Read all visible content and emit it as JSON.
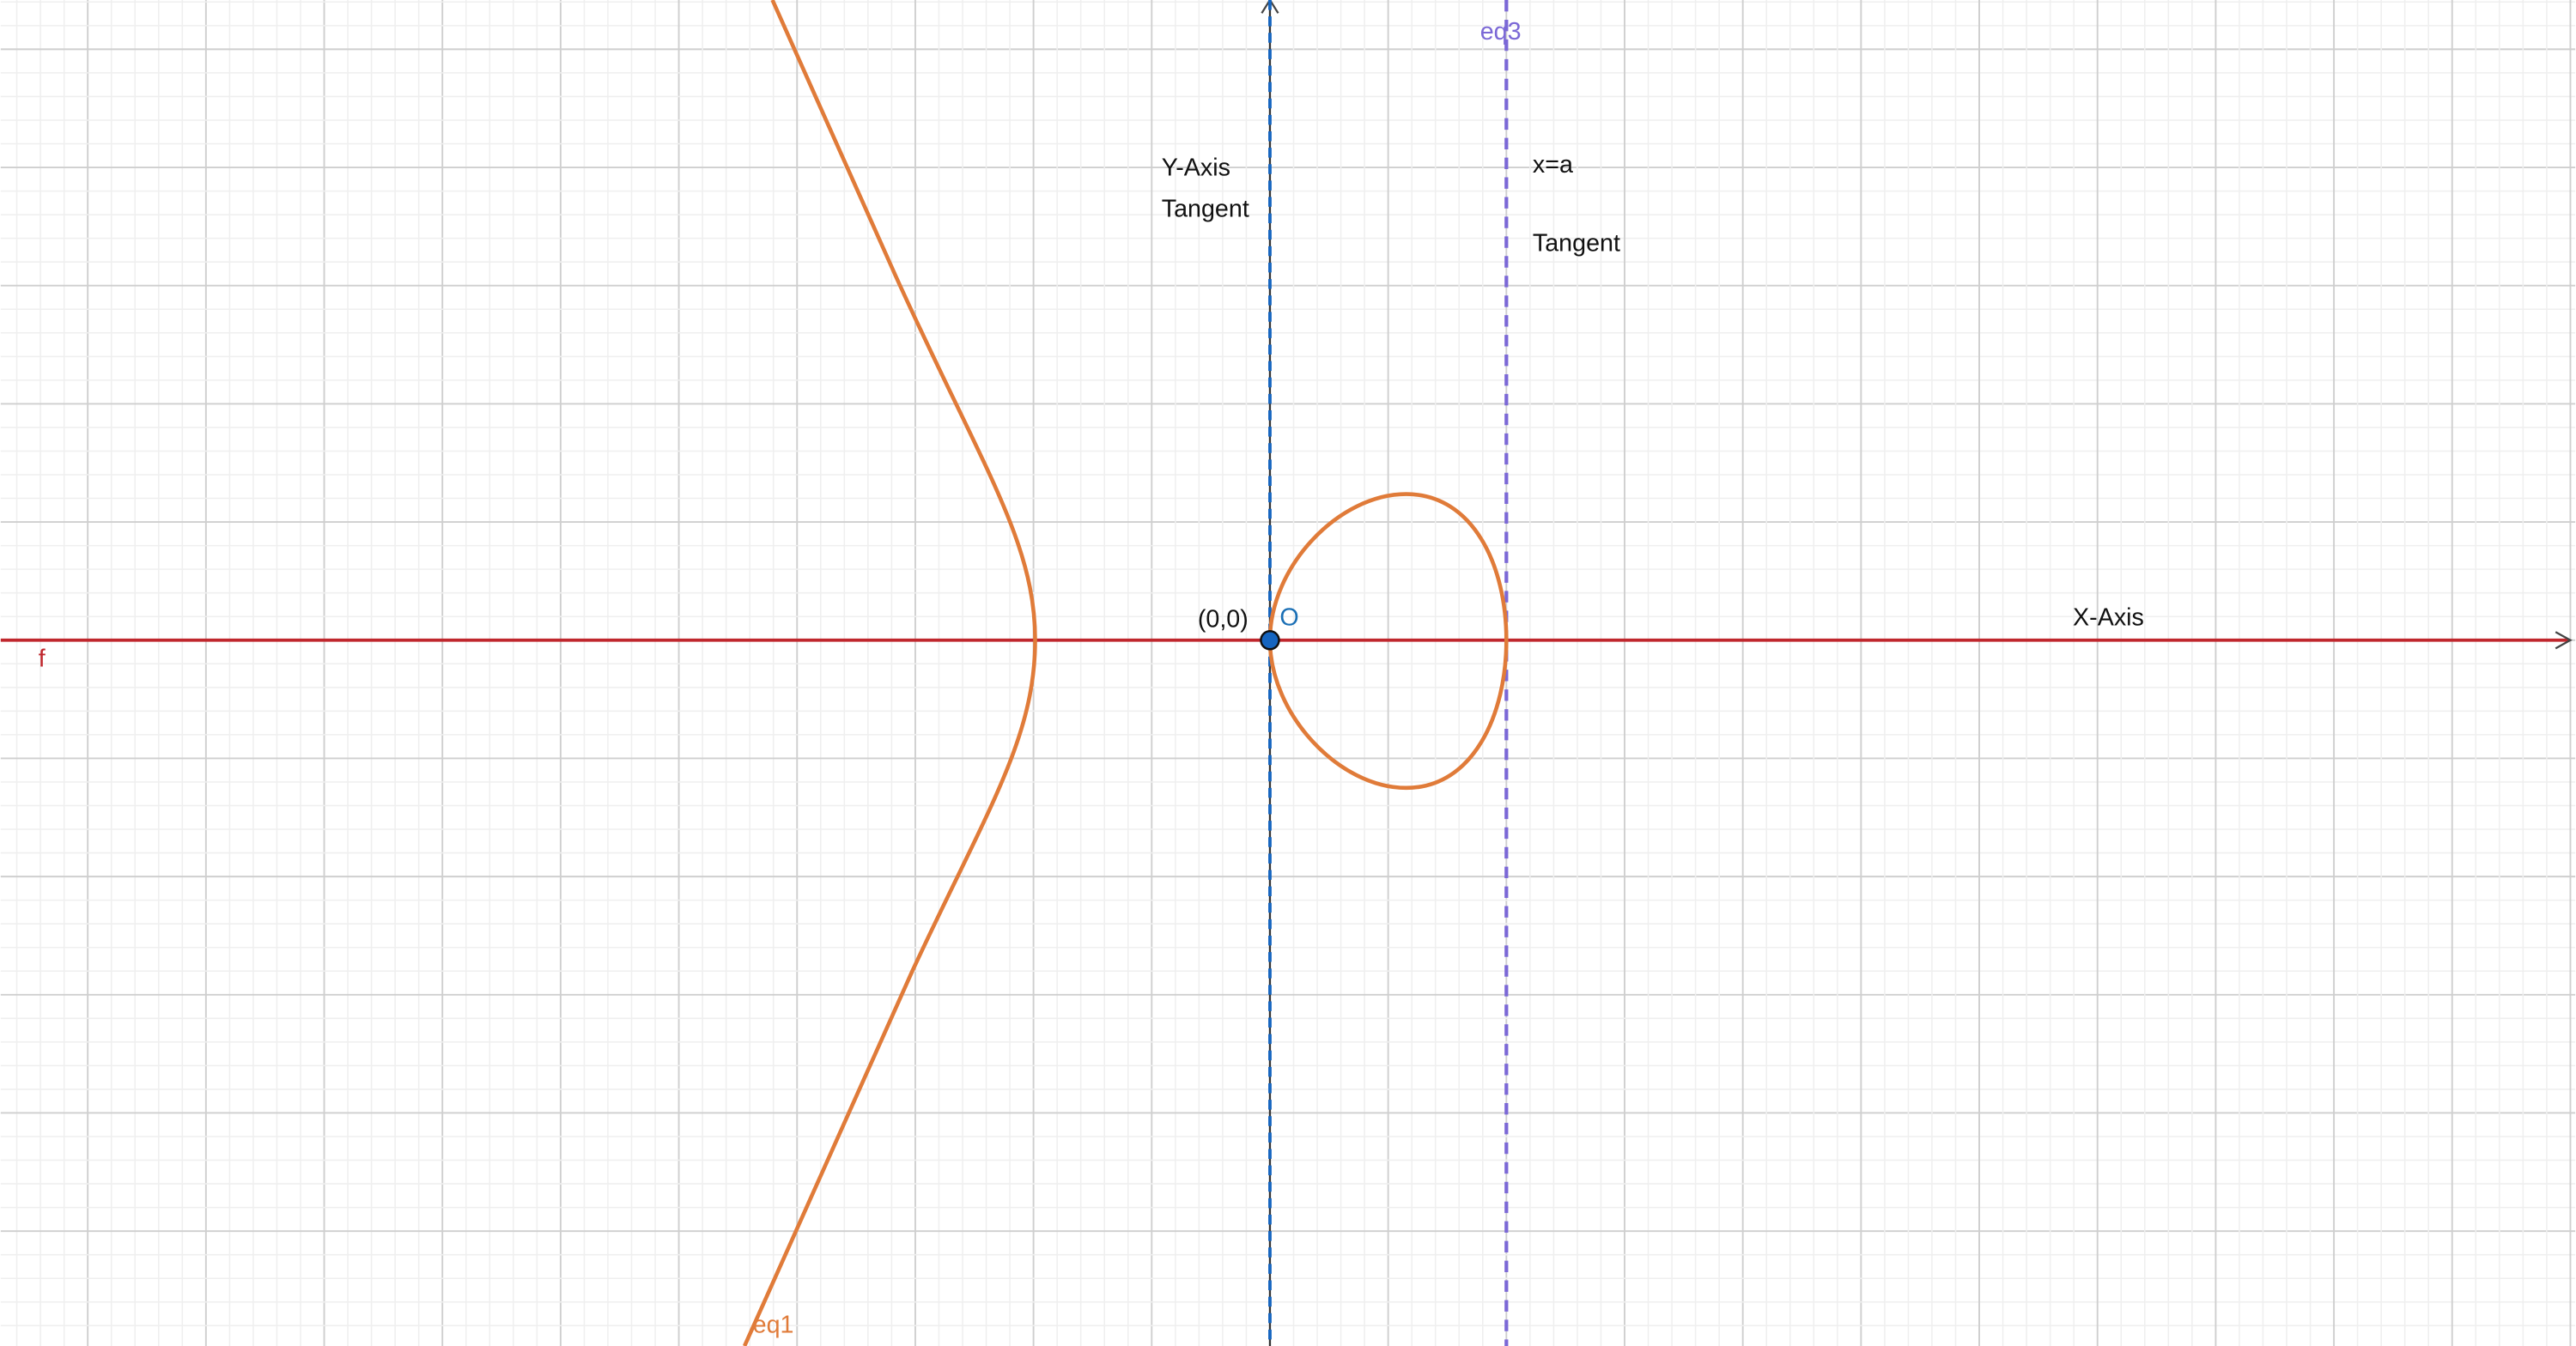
{
  "labels": {
    "eq3": "eq3",
    "y_axis": "Y-Axis",
    "y_tangent": "Tangent",
    "x_eq_a": "x=a",
    "a_tangent": "Tangent",
    "origin_coords": "(0,0)",
    "origin_name": "O",
    "x_axis": "X-Axis",
    "f": "f",
    "eq1": "eq1"
  }
}
